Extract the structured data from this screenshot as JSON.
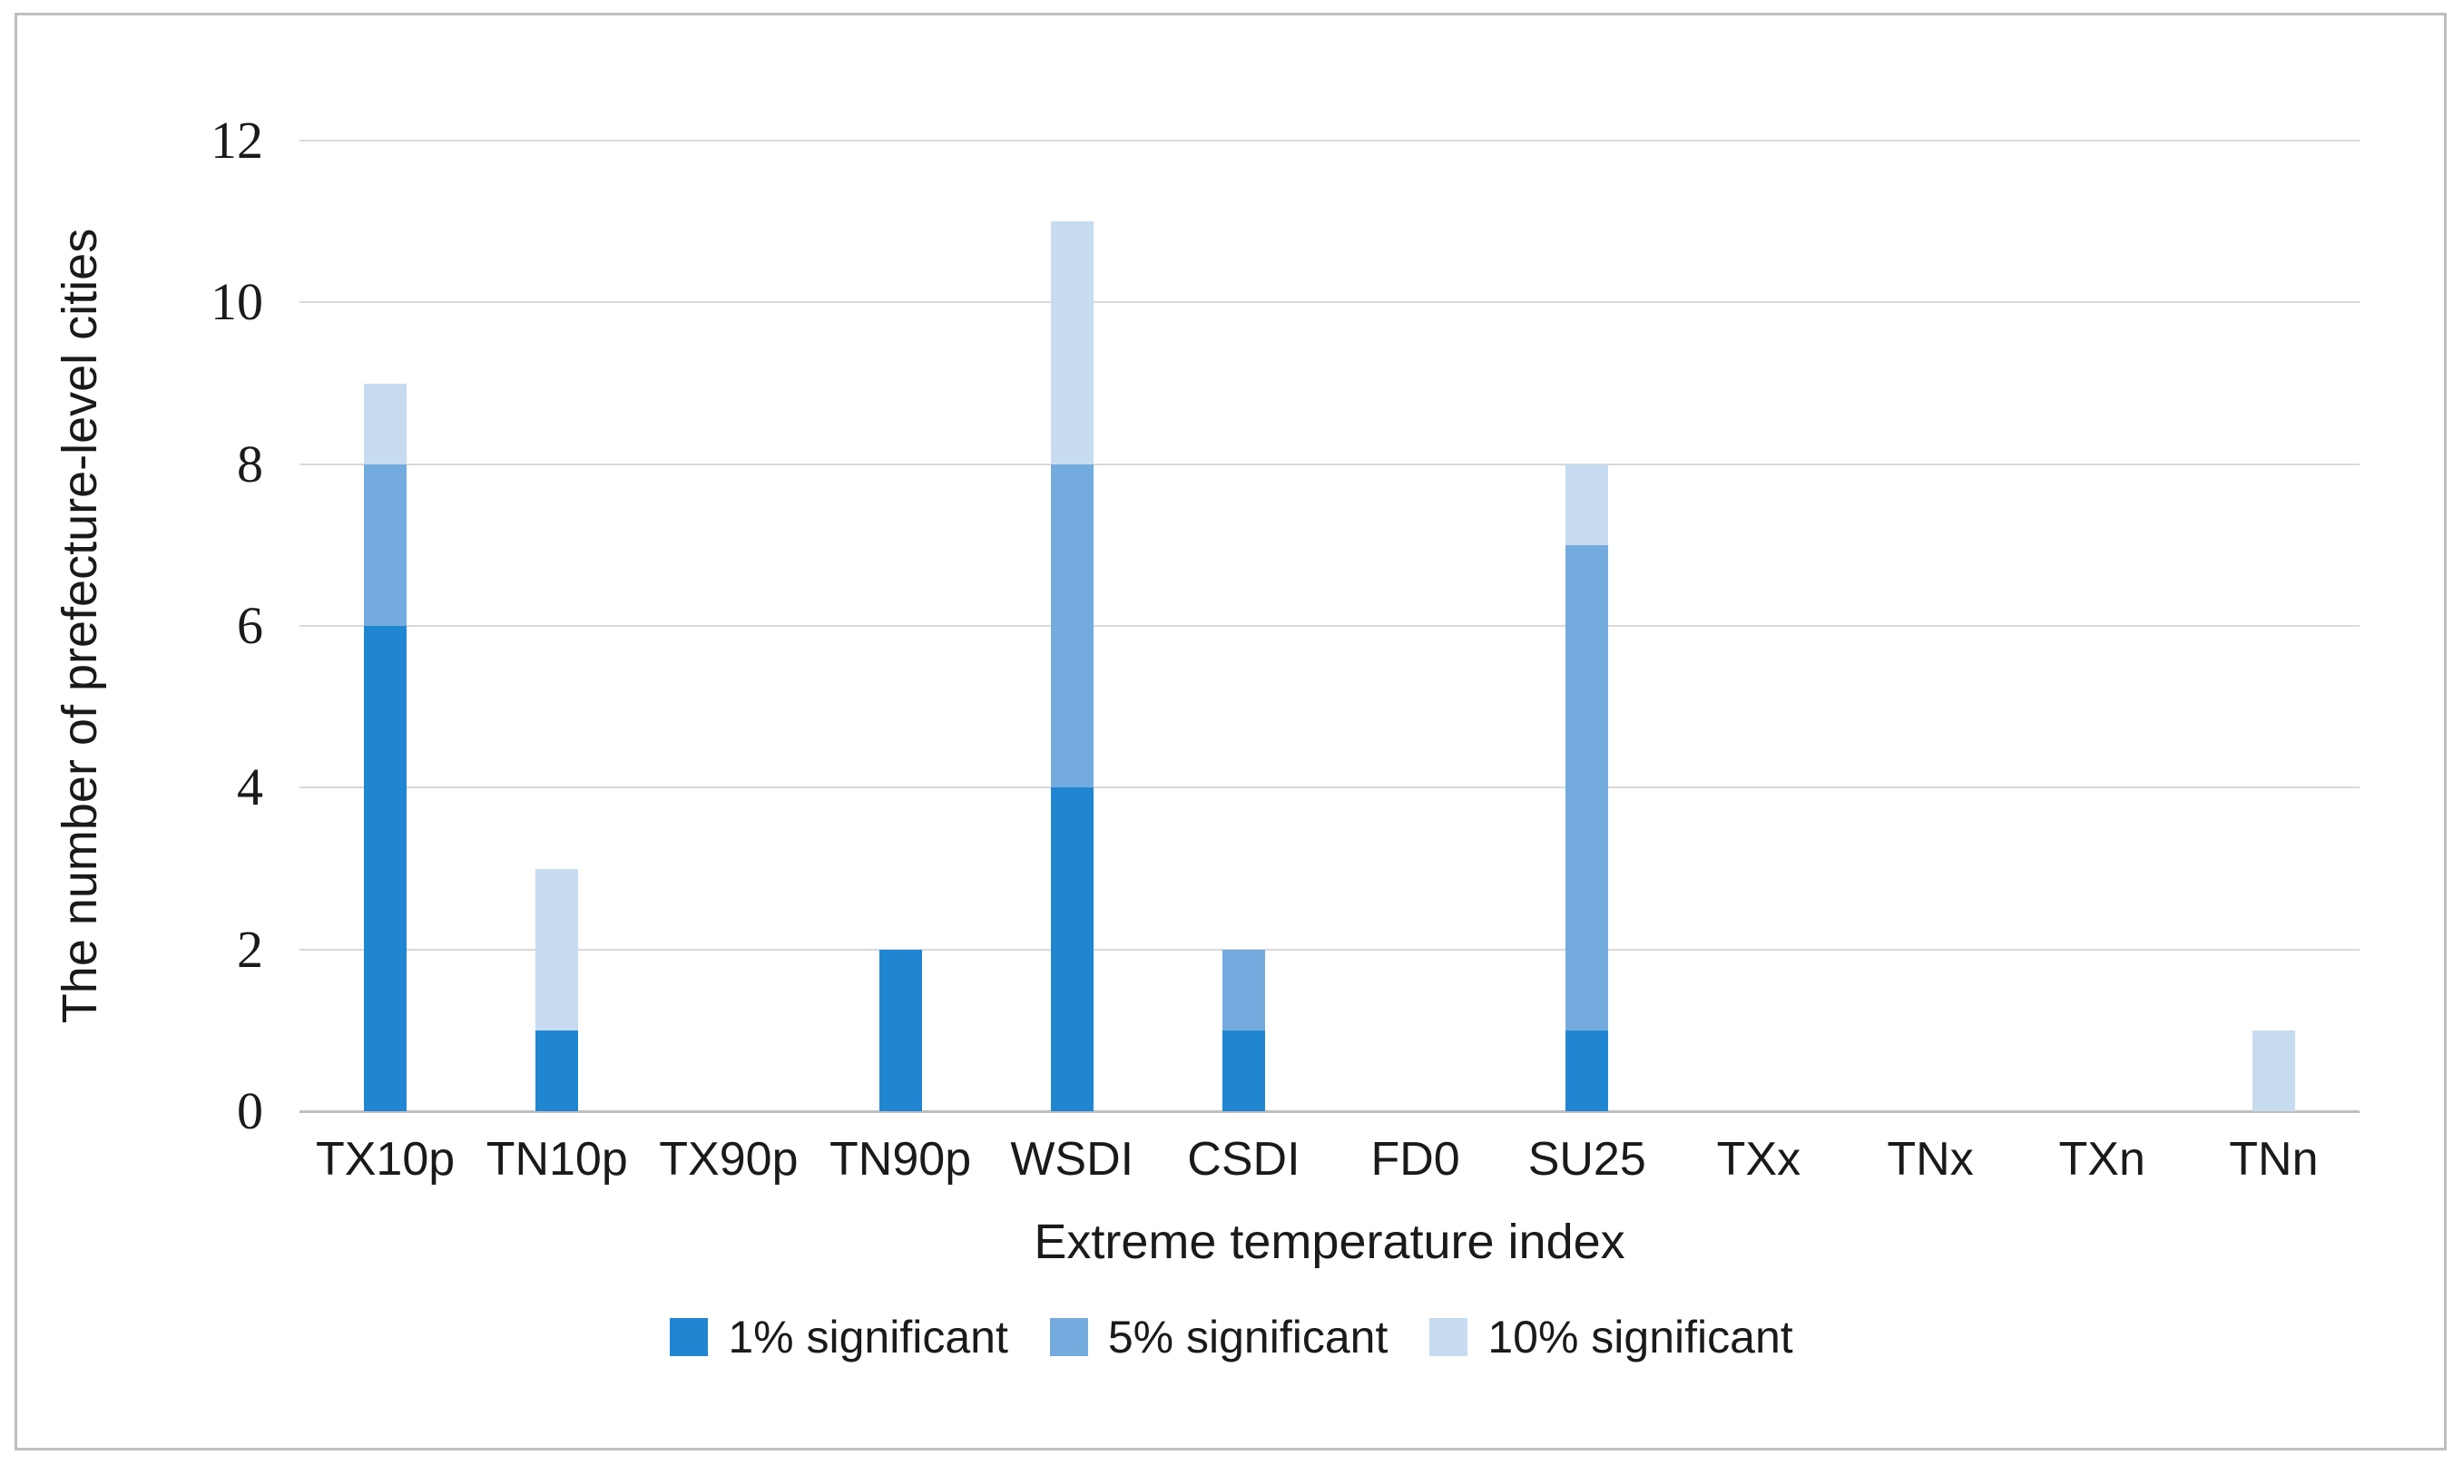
{
  "figure": {
    "border_color": "#bfbfbf",
    "background": "#ffffff"
  },
  "chart_data": {
    "type": "bar",
    "stacked": true,
    "title": "",
    "xlabel": "Extreme temperature index",
    "ylabel": "The number of prefecture-level cities",
    "categories": [
      "TX10p",
      "TN10p",
      "TX90p",
      "TN90p",
      "WSDI",
      "CSDI",
      "FD0",
      "SU25",
      "TXx",
      "TNx",
      "TXn",
      "TNn"
    ],
    "series": [
      {
        "name": "1% significant",
        "color": "#2186d1",
        "values": [
          6,
          1,
          0,
          2,
          4,
          1,
          0,
          1,
          0,
          0,
          0,
          0
        ]
      },
      {
        "name": "5% significant",
        "color": "#74abde",
        "values": [
          2,
          0,
          0,
          0,
          4,
          1,
          0,
          6,
          0,
          0,
          0,
          0
        ]
      },
      {
        "name": "10% significant",
        "color": "#c7dbf1",
        "values": [
          1,
          2,
          0,
          0,
          3,
          0,
          0,
          1,
          0,
          0,
          0,
          1
        ]
      }
    ],
    "totals": [
      9,
      3,
      0,
      2,
      11,
      2,
      0,
      8,
      0,
      0,
      0,
      1
    ],
    "ylim": [
      0,
      12
    ],
    "yticks": [
      0,
      2,
      4,
      6,
      8,
      10,
      12
    ],
    "grid": "horizontal",
    "gridline_color": "#d9d9d9",
    "axisline_color": "#bfbfbf",
    "legend_position": "bottom"
  }
}
